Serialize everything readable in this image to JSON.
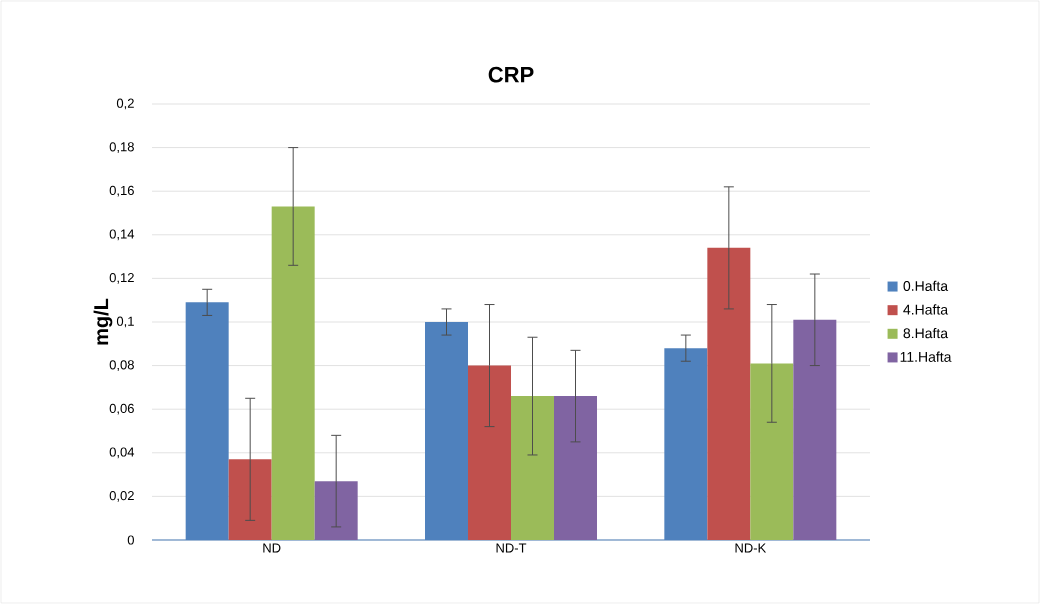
{
  "chart_data": {
    "type": "bar",
    "title": "CRP",
    "ylabel": "mg/L",
    "categories": [
      "ND",
      "ND-T",
      "ND-K"
    ],
    "series": [
      {
        "name": "0.Hafta",
        "color": "#4f81bd",
        "values": [
          0.109,
          0.1,
          0.088
        ],
        "errors": [
          0.006,
          0.006,
          0.006
        ]
      },
      {
        "name": "4.Hafta",
        "color": "#c0504d",
        "values": [
          0.037,
          0.08,
          0.134
        ],
        "errors": [
          0.028,
          0.028,
          0.028
        ]
      },
      {
        "name": "8.Hafta",
        "color": "#9bbb59",
        "values": [
          0.153,
          0.066,
          0.081
        ],
        "errors": [
          0.027,
          0.027,
          0.027
        ]
      },
      {
        "name": "11.Hafta",
        "color": "#8064a2",
        "values": [
          0.027,
          0.066,
          0.101
        ],
        "errors": [
          0.021,
          0.021,
          0.021
        ]
      }
    ],
    "ylim": [
      0,
      0.2
    ],
    "yticks": [
      0,
      {
        "value": 0.02,
        "label": "0,02"
      },
      {
        "value": 0.04,
        "label": "0,04"
      },
      {
        "value": 0.06,
        "label": "0,06"
      },
      {
        "value": 0.08,
        "label": "0,08"
      },
      {
        "value": 0.1,
        "label": "0,1"
      },
      {
        "value": 0.12,
        "label": "0,12"
      },
      {
        "value": 0.14,
        "label": "0,14"
      },
      {
        "value": 0.16,
        "label": "0,16"
      },
      {
        "value": 0.18,
        "label": "0,18"
      },
      {
        "value": 0.2,
        "label": "0,2"
      }
    ],
    "grid": "y",
    "legend": "right"
  }
}
